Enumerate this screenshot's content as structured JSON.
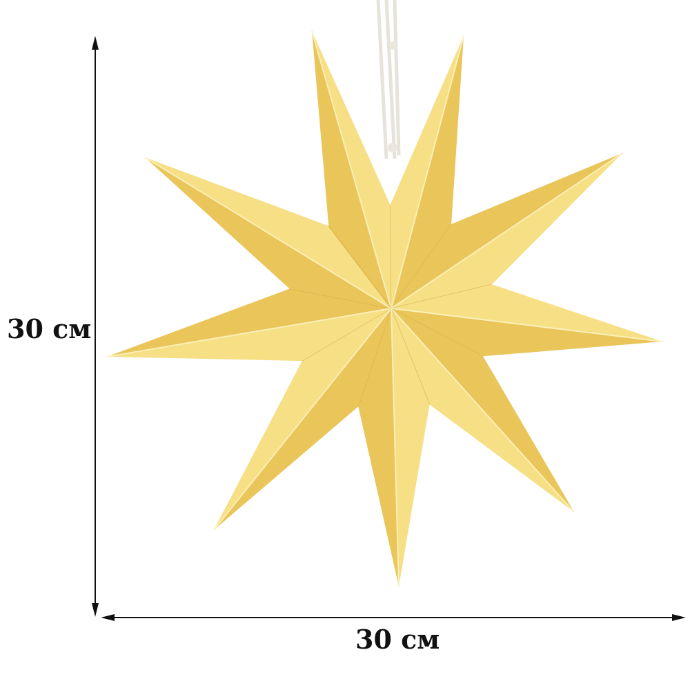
{
  "dimensions": {
    "height_label": "30 см",
    "width_label": "30 см"
  },
  "product": {
    "points": 9,
    "colors": {
      "light": "#f6df85",
      "dark": "#e9c55a",
      "crease": "#fbefb8",
      "cord": "#f4f2ec",
      "arrow": "#111111"
    }
  }
}
